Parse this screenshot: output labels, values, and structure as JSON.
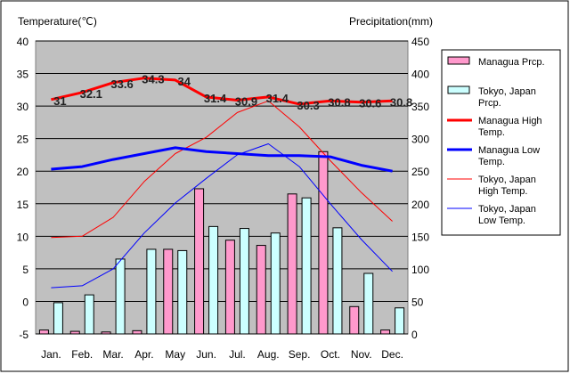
{
  "chart_data": {
    "type": "bar",
    "combo": "bar+line",
    "left_axis_title": "Temperature(℃)",
    "right_axis_title": "Precipitation(mm)",
    "categories": [
      "Jan.",
      "Feb.",
      "Mar.",
      "Apr.",
      "May",
      "Jun.",
      "Jul.",
      "Aug.",
      "Sep.",
      "Oct.",
      "Nov.",
      "Dec."
    ],
    "ylim_left": [
      -5,
      40
    ],
    "left_ticks": [
      -5,
      0,
      5,
      10,
      15,
      20,
      25,
      30,
      35,
      40
    ],
    "ylim_right": [
      0,
      450
    ],
    "right_ticks": [
      0,
      50,
      100,
      150,
      200,
      250,
      300,
      350,
      400,
      450
    ],
    "grid": true,
    "plot_background": "#c0c0c0",
    "legend_position": "right",
    "series": [
      {
        "name": "Managua Prcp.",
        "kind": "bar",
        "axis": "right",
        "color": "#ff99cc",
        "values": [
          6,
          4,
          3,
          5,
          130,
          223,
          144,
          136,
          215,
          280,
          42,
          6
        ]
      },
      {
        "name": "Tokyo, Japan Prcp.",
        "kind": "bar",
        "axis": "right",
        "color": "#ccffff",
        "values": [
          48,
          60,
          115,
          130,
          128,
          165,
          162,
          155,
          209,
          163,
          93,
          40
        ]
      },
      {
        "name": "Managua High Temp.",
        "kind": "line",
        "axis": "left",
        "color": "#ff0000",
        "width": 3,
        "values": [
          31,
          32.1,
          33.6,
          34.3,
          34,
          31.4,
          30.9,
          31.4,
          30.3,
          30.8,
          30.6,
          30.8
        ],
        "labels": [
          "31",
          "32.1",
          "33.6",
          "34.3",
          "34",
          "31.4",
          "30.9",
          "31.4",
          "30.3",
          "30.8",
          "30.6",
          "30.8"
        ]
      },
      {
        "name": "Managua Low Temp.",
        "kind": "line",
        "axis": "left",
        "color": "#0000ff",
        "width": 3,
        "values": [
          20.3,
          20.7,
          21.8,
          22.7,
          23.6,
          23.0,
          22.7,
          22.4,
          22.4,
          22.2,
          20.9,
          20.0
        ]
      },
      {
        "name": "Tokyo, Japan High Temp.",
        "kind": "line",
        "axis": "left",
        "color": "#ff0000",
        "width": 1,
        "values": [
          9.8,
          10.0,
          12.9,
          18.4,
          22.7,
          25.2,
          29.0,
          30.8,
          26.8,
          21.6,
          16.7,
          12.3
        ]
      },
      {
        "name": "Tokyo, Japan Low Temp.",
        "kind": "line",
        "axis": "left",
        "color": "#0000ff",
        "width": 1,
        "values": [
          2.1,
          2.4,
          5.0,
          10.5,
          15.1,
          18.9,
          22.5,
          24.2,
          20.7,
          15.0,
          9.5,
          4.6
        ]
      }
    ]
  }
}
